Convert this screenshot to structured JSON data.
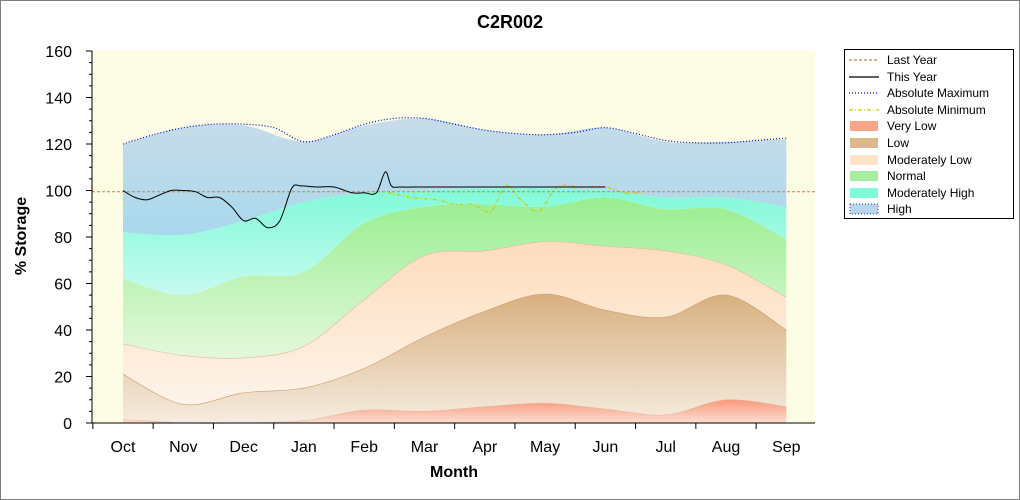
{
  "chart_data": {
    "type": "area",
    "title": "C2R002",
    "xlabel": "Month",
    "ylabel": "% Storage",
    "ylim": [
      0,
      160
    ],
    "yticks": [
      0,
      20,
      40,
      60,
      80,
      100,
      120,
      140,
      160
    ],
    "categories": [
      "Oct",
      "Nov",
      "Dec",
      "Jan",
      "Feb",
      "Mar",
      "Apr",
      "May",
      "Jun",
      "Jul",
      "Aug",
      "Sep"
    ],
    "grid": false,
    "legend_position": "right",
    "colors": {
      "background": "#fdfde6",
      "very_low": "#f9a58a",
      "low": "#ddb88a",
      "moderately_low": "#fde3c8",
      "normal": "#a4f0a0",
      "moderately_high": "#80fad8",
      "high": "#b4d8ea",
      "last_year": "#cc8040",
      "this_year": "#000000",
      "absolute_maximum": "#0000cc",
      "absolute_minimum": "#cccc00"
    },
    "bands": [
      {
        "name": "Very Low",
        "upper": [
          1.5,
          0,
          0,
          1,
          5.5,
          5,
          7,
          8.5,
          6,
          3.5,
          10,
          7
        ]
      },
      {
        "name": "Low",
        "upper": [
          21,
          8,
          13,
          15,
          23.5,
          37,
          48,
          55.5,
          48.5,
          45.5,
          55,
          40
        ]
      },
      {
        "name": "Moderately Low",
        "upper": [
          34,
          29,
          28,
          33,
          53,
          72,
          74,
          78,
          76,
          74,
          68,
          54
        ]
      },
      {
        "name": "Normal",
        "upper": [
          62,
          55,
          63,
          65,
          86,
          93,
          94,
          93,
          97,
          92,
          92,
          79
        ]
      },
      {
        "name": "Moderately High",
        "upper": [
          82,
          81,
          87,
          95,
          99,
          100,
          101,
          101,
          100,
          97,
          97,
          93
        ]
      },
      {
        "name": "High",
        "upper": [
          120,
          127,
          128,
          121,
          128,
          131,
          126,
          124,
          127,
          121,
          121,
          122
        ]
      }
    ],
    "series": [
      {
        "name": "Last Year",
        "x": [
          0,
          11
        ],
        "values": [
          99.5,
          99.5
        ],
        "style": "dashed"
      },
      {
        "name": "This Year",
        "x": [
          0,
          0.2,
          0.4,
          0.6,
          0.8,
          1.0,
          1.2,
          1.4,
          1.6,
          1.8,
          2.0,
          2.2,
          2.4,
          2.6,
          2.8,
          2.95,
          3.2,
          3.5,
          3.8,
          4.0,
          4.2,
          4.35,
          4.45,
          4.6,
          5.0,
          5.5,
          6.0,
          6.5,
          7.0,
          7.5,
          8.0
        ],
        "values": [
          100,
          97,
          96,
          98,
          100,
          100,
          99.5,
          97,
          97,
          93,
          87,
          88,
          84,
          87,
          101,
          102,
          101.5,
          101.5,
          99,
          99,
          99,
          108,
          102,
          101.5,
          101.5,
          101.5,
          101.5,
          101.5,
          101.5,
          101.5,
          101.5
        ]
      },
      {
        "name": "Absolute Maximum",
        "x": [
          0,
          0.5,
          1,
          1.5,
          2,
          2.5,
          3,
          3.5,
          4,
          4.5,
          5,
          5.5,
          6,
          6.5,
          7,
          7.5,
          8,
          8.5,
          9,
          9.5,
          10,
          10.5,
          11
        ],
        "values": [
          120,
          124,
          127,
          128.5,
          128.5,
          127,
          121,
          124,
          128.5,
          131,
          131,
          128.5,
          126,
          124.5,
          124,
          125,
          127,
          124.5,
          121.5,
          120.5,
          120.5,
          121.5,
          122.5
        ],
        "style": "dotted"
      },
      {
        "name": "Absolute Minimum",
        "x": [
          4.4,
          4.8,
          5.2,
          5.5,
          5.8,
          6.1,
          6.35,
          6.6,
          6.9,
          7.2,
          7.6,
          8.0,
          8.3,
          8.6
        ],
        "values": [
          99,
          97,
          96,
          94,
          94,
          91,
          102,
          96,
          91,
          101.5,
          101.5,
          101.5,
          99,
          99
        ],
        "style": "dashdot"
      }
    ]
  },
  "legend": {
    "items": [
      {
        "label": "Last Year",
        "kind": "line",
        "color": "#cc8040",
        "dash": "3,2"
      },
      {
        "label": "This Year",
        "kind": "line",
        "color": "#000000",
        "dash": ""
      },
      {
        "label": "Absolute Maximum",
        "kind": "line",
        "color": "#0000cc",
        "dash": "1,2"
      },
      {
        "label": "Absolute Minimum",
        "kind": "line",
        "color": "#cccc00",
        "dash": "4,2,1,2"
      },
      {
        "label": "Very Low",
        "kind": "fill",
        "color": "#f9a58a",
        "dash": ""
      },
      {
        "label": "Low",
        "kind": "fill",
        "color": "#ddb88a",
        "dash": ""
      },
      {
        "label": "Moderately Low",
        "kind": "fill",
        "color": "#fde3c8",
        "dash": ""
      },
      {
        "label": "Normal",
        "kind": "fill",
        "color": "#a4f0a0",
        "dash": ""
      },
      {
        "label": "Moderately High",
        "kind": "fill",
        "color": "#80fad8",
        "dash": ""
      },
      {
        "label": "High",
        "kind": "fill",
        "color": "#b4d8ea",
        "dash": "1,2"
      }
    ]
  }
}
